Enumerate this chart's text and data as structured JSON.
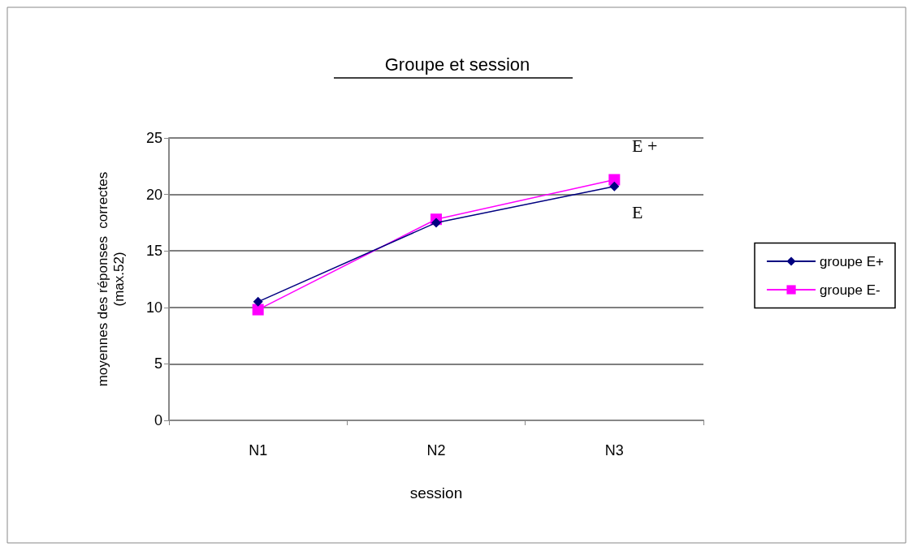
{
  "chart_data": {
    "type": "line",
    "title": "Groupe et session",
    "xlabel": "session",
    "ylabel": "moyennes des réponses  correctes\n(max.52)",
    "categories": [
      "N1",
      "N2",
      "N3"
    ],
    "series": [
      {
        "name": "groupe E+",
        "color": "#000080",
        "values": [
          10.5,
          17.5,
          20.7
        ],
        "marker": "diamond"
      },
      {
        "name": "groupe E-",
        "color": "#ff00ff",
        "values": [
          9.8,
          17.8,
          21.3
        ],
        "marker": "square"
      }
    ],
    "annotations": [
      "E +",
      "E"
    ],
    "ylim": [
      0,
      25
    ],
    "yticks": [
      0,
      5,
      10,
      15,
      20,
      25
    ],
    "grid": "y",
    "legend": "right"
  }
}
